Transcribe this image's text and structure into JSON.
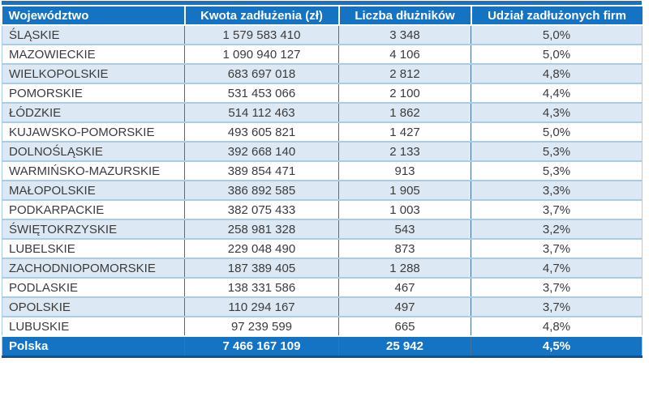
{
  "chart_data": {
    "type": "table",
    "columns": [
      "Województwo",
      "Kwota zadłużenia (zł)",
      "Liczba dłużników",
      "Udział zadłużonych firm"
    ],
    "rows": [
      [
        "ŚLĄSKIE",
        "1 579 583 410",
        "3 348",
        "5,0%"
      ],
      [
        "MAZOWIECKIE",
        "1 090 940 127",
        "4 106",
        "5,0%"
      ],
      [
        "WIELKOPOLSKIE",
        "683 697 018",
        "2 812",
        "4,8%"
      ],
      [
        "POMORSKIE",
        "531 453 066",
        "2 100",
        "4,4%"
      ],
      [
        "ŁÓDZKIE",
        "514 112 463",
        "1 862",
        "4,3%"
      ],
      [
        "KUJAWSKO-POMORSKIE",
        "493 605 821",
        "1 427",
        "5,0%"
      ],
      [
        "DOLNOŚLĄSKIE",
        "392 668 140",
        "2 133",
        "5,3%"
      ],
      [
        "WARMIŃSKO-MAZURSKIE",
        "389 854 471",
        "913",
        "5,3%"
      ],
      [
        "MAŁOPOLSKIE",
        "386 892 585",
        "1 905",
        "3,3%"
      ],
      [
        "PODKARPACKIE",
        "382 075 433",
        "1 003",
        "3,7%"
      ],
      [
        "ŚWIĘTOKRZYSKIE",
        "258 981 328",
        "543",
        "3,2%"
      ],
      [
        "LUBELSKIE",
        "229 048 490",
        "873",
        "3,7%"
      ],
      [
        "ZACHODNIOPOMORSKIE",
        "187 389 405",
        "1 288",
        "4,7%"
      ],
      [
        "PODLASKIE",
        "138 331 586",
        "467",
        "3,7%"
      ],
      [
        "OPOLSKIE",
        "110 294 167",
        "497",
        "3,7%"
      ],
      [
        "LUBUSKIE",
        "97 239 599",
        "665",
        "4,8%"
      ]
    ],
    "total": [
      "Polska",
      "7 466 167 109",
      "25 942",
      "4,5%"
    ]
  },
  "colors": {
    "header_bg": "#1473C3",
    "alt_row_bg": "#DCE9F5",
    "grid_v": "#41719C",
    "grid_h": "#A9CCE9",
    "total_border": "#1F4E79",
    "body_text": "#3B3B3B",
    "header_text": "#FFFFFF"
  }
}
